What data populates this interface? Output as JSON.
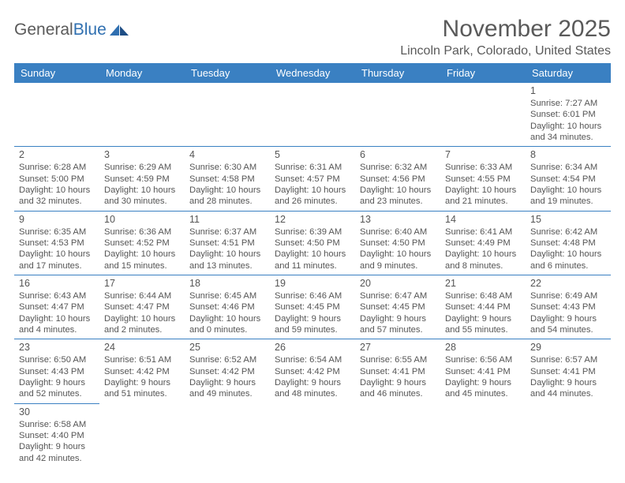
{
  "brand": {
    "part1": "General",
    "part2": "Blue"
  },
  "title": "November 2025",
  "location": "Lincoln Park, Colorado, United States",
  "colors": {
    "header_bg": "#3a80c2",
    "header_text": "#ffffff",
    "border": "#3a80c2",
    "text": "#555555",
    "logo_blue": "#2f6fb0",
    "page_bg": "#ffffff"
  },
  "weekdays": [
    "Sunday",
    "Monday",
    "Tuesday",
    "Wednesday",
    "Thursday",
    "Friday",
    "Saturday"
  ],
  "weeks": [
    [
      null,
      null,
      null,
      null,
      null,
      null,
      {
        "n": "1",
        "sr": "Sunrise: 7:27 AM",
        "ss": "Sunset: 6:01 PM",
        "dl1": "Daylight: 10 hours",
        "dl2": "and 34 minutes."
      }
    ],
    [
      {
        "n": "2",
        "sr": "Sunrise: 6:28 AM",
        "ss": "Sunset: 5:00 PM",
        "dl1": "Daylight: 10 hours",
        "dl2": "and 32 minutes."
      },
      {
        "n": "3",
        "sr": "Sunrise: 6:29 AM",
        "ss": "Sunset: 4:59 PM",
        "dl1": "Daylight: 10 hours",
        "dl2": "and 30 minutes."
      },
      {
        "n": "4",
        "sr": "Sunrise: 6:30 AM",
        "ss": "Sunset: 4:58 PM",
        "dl1": "Daylight: 10 hours",
        "dl2": "and 28 minutes."
      },
      {
        "n": "5",
        "sr": "Sunrise: 6:31 AM",
        "ss": "Sunset: 4:57 PM",
        "dl1": "Daylight: 10 hours",
        "dl2": "and 26 minutes."
      },
      {
        "n": "6",
        "sr": "Sunrise: 6:32 AM",
        "ss": "Sunset: 4:56 PM",
        "dl1": "Daylight: 10 hours",
        "dl2": "and 23 minutes."
      },
      {
        "n": "7",
        "sr": "Sunrise: 6:33 AM",
        "ss": "Sunset: 4:55 PM",
        "dl1": "Daylight: 10 hours",
        "dl2": "and 21 minutes."
      },
      {
        "n": "8",
        "sr": "Sunrise: 6:34 AM",
        "ss": "Sunset: 4:54 PM",
        "dl1": "Daylight: 10 hours",
        "dl2": "and 19 minutes."
      }
    ],
    [
      {
        "n": "9",
        "sr": "Sunrise: 6:35 AM",
        "ss": "Sunset: 4:53 PM",
        "dl1": "Daylight: 10 hours",
        "dl2": "and 17 minutes."
      },
      {
        "n": "10",
        "sr": "Sunrise: 6:36 AM",
        "ss": "Sunset: 4:52 PM",
        "dl1": "Daylight: 10 hours",
        "dl2": "and 15 minutes."
      },
      {
        "n": "11",
        "sr": "Sunrise: 6:37 AM",
        "ss": "Sunset: 4:51 PM",
        "dl1": "Daylight: 10 hours",
        "dl2": "and 13 minutes."
      },
      {
        "n": "12",
        "sr": "Sunrise: 6:39 AM",
        "ss": "Sunset: 4:50 PM",
        "dl1": "Daylight: 10 hours",
        "dl2": "and 11 minutes."
      },
      {
        "n": "13",
        "sr": "Sunrise: 6:40 AM",
        "ss": "Sunset: 4:50 PM",
        "dl1": "Daylight: 10 hours",
        "dl2": "and 9 minutes."
      },
      {
        "n": "14",
        "sr": "Sunrise: 6:41 AM",
        "ss": "Sunset: 4:49 PM",
        "dl1": "Daylight: 10 hours",
        "dl2": "and 8 minutes."
      },
      {
        "n": "15",
        "sr": "Sunrise: 6:42 AM",
        "ss": "Sunset: 4:48 PM",
        "dl1": "Daylight: 10 hours",
        "dl2": "and 6 minutes."
      }
    ],
    [
      {
        "n": "16",
        "sr": "Sunrise: 6:43 AM",
        "ss": "Sunset: 4:47 PM",
        "dl1": "Daylight: 10 hours",
        "dl2": "and 4 minutes."
      },
      {
        "n": "17",
        "sr": "Sunrise: 6:44 AM",
        "ss": "Sunset: 4:47 PM",
        "dl1": "Daylight: 10 hours",
        "dl2": "and 2 minutes."
      },
      {
        "n": "18",
        "sr": "Sunrise: 6:45 AM",
        "ss": "Sunset: 4:46 PM",
        "dl1": "Daylight: 10 hours",
        "dl2": "and 0 minutes."
      },
      {
        "n": "19",
        "sr": "Sunrise: 6:46 AM",
        "ss": "Sunset: 4:45 PM",
        "dl1": "Daylight: 9 hours",
        "dl2": "and 59 minutes."
      },
      {
        "n": "20",
        "sr": "Sunrise: 6:47 AM",
        "ss": "Sunset: 4:45 PM",
        "dl1": "Daylight: 9 hours",
        "dl2": "and 57 minutes."
      },
      {
        "n": "21",
        "sr": "Sunrise: 6:48 AM",
        "ss": "Sunset: 4:44 PM",
        "dl1": "Daylight: 9 hours",
        "dl2": "and 55 minutes."
      },
      {
        "n": "22",
        "sr": "Sunrise: 6:49 AM",
        "ss": "Sunset: 4:43 PM",
        "dl1": "Daylight: 9 hours",
        "dl2": "and 54 minutes."
      }
    ],
    [
      {
        "n": "23",
        "sr": "Sunrise: 6:50 AM",
        "ss": "Sunset: 4:43 PM",
        "dl1": "Daylight: 9 hours",
        "dl2": "and 52 minutes."
      },
      {
        "n": "24",
        "sr": "Sunrise: 6:51 AM",
        "ss": "Sunset: 4:42 PM",
        "dl1": "Daylight: 9 hours",
        "dl2": "and 51 minutes."
      },
      {
        "n": "25",
        "sr": "Sunrise: 6:52 AM",
        "ss": "Sunset: 4:42 PM",
        "dl1": "Daylight: 9 hours",
        "dl2": "and 49 minutes."
      },
      {
        "n": "26",
        "sr": "Sunrise: 6:54 AM",
        "ss": "Sunset: 4:42 PM",
        "dl1": "Daylight: 9 hours",
        "dl2": "and 48 minutes."
      },
      {
        "n": "27",
        "sr": "Sunrise: 6:55 AM",
        "ss": "Sunset: 4:41 PM",
        "dl1": "Daylight: 9 hours",
        "dl2": "and 46 minutes."
      },
      {
        "n": "28",
        "sr": "Sunrise: 6:56 AM",
        "ss": "Sunset: 4:41 PM",
        "dl1": "Daylight: 9 hours",
        "dl2": "and 45 minutes."
      },
      {
        "n": "29",
        "sr": "Sunrise: 6:57 AM",
        "ss": "Sunset: 4:41 PM",
        "dl1": "Daylight: 9 hours",
        "dl2": "and 44 minutes."
      }
    ],
    [
      {
        "n": "30",
        "sr": "Sunrise: 6:58 AM",
        "ss": "Sunset: 4:40 PM",
        "dl1": "Daylight: 9 hours",
        "dl2": "and 42 minutes."
      },
      null,
      null,
      null,
      null,
      null,
      null
    ]
  ]
}
